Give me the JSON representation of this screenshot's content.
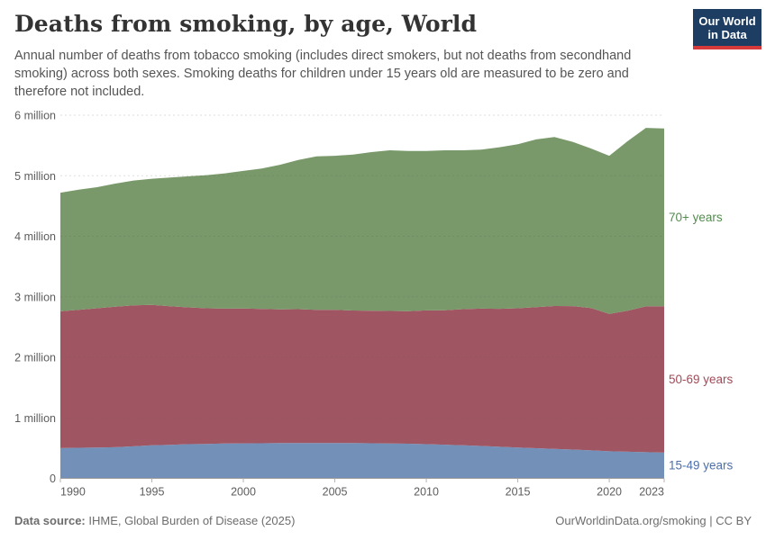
{
  "header": {
    "title": "Deaths from smoking, by age, World",
    "subtitle": "Annual number of deaths from tobacco smoking (includes direct smokers, but not deaths from secondhand smoking) across both sexes. Smoking deaths for children under 15 years old are measured to be zero and therefore not included.",
    "logo": {
      "line1": "Our World",
      "line2": "in Data",
      "bg_color": "#1d3d63",
      "accent_color": "#d73a3a"
    }
  },
  "chart_data": {
    "type": "area",
    "stacked": true,
    "title": "Deaths from smoking, by age, World",
    "xlabel": "",
    "ylabel": "",
    "values_unit": "million deaths per year",
    "grid": true,
    "legend_position": "right",
    "xlim": [
      1990,
      2023
    ],
    "ylim_millions": [
      0,
      6
    ],
    "x": [
      1990,
      1991,
      1992,
      1993,
      1994,
      1995,
      1996,
      1997,
      1998,
      1999,
      2000,
      2001,
      2002,
      2003,
      2004,
      2005,
      2006,
      2007,
      2008,
      2009,
      2010,
      2011,
      2012,
      2013,
      2014,
      2015,
      2016,
      2017,
      2018,
      2019,
      2020,
      2021,
      2022,
      2023
    ],
    "x_ticks": [
      1990,
      1995,
      2000,
      2005,
      2010,
      2015,
      2020,
      2023
    ],
    "y_ticks": [
      {
        "value": 0,
        "label": "0"
      },
      {
        "value": 1,
        "label": "1 million"
      },
      {
        "value": 2,
        "label": "2 million"
      },
      {
        "value": 3,
        "label": "3 million"
      },
      {
        "value": 4,
        "label": "4 million"
      },
      {
        "value": 5,
        "label": "5 million"
      },
      {
        "value": 6,
        "label": "6 million"
      }
    ],
    "series": [
      {
        "name": "15-49 years",
        "color": "#7390b8",
        "label_color": "#4d6faa",
        "values_millions": [
          0.5,
          0.505,
          0.51,
          0.515,
          0.53,
          0.545,
          0.555,
          0.565,
          0.57,
          0.575,
          0.578,
          0.58,
          0.583,
          0.585,
          0.585,
          0.585,
          0.583,
          0.58,
          0.576,
          0.572,
          0.565,
          0.556,
          0.545,
          0.535,
          0.522,
          0.51,
          0.498,
          0.487,
          0.476,
          0.463,
          0.448,
          0.44,
          0.432,
          0.425
        ]
      },
      {
        "name": "50-69 years",
        "color": "#a05563",
        "label_color": "#a04b58",
        "values_millions": [
          2.26,
          2.28,
          2.3,
          2.32,
          2.33,
          2.32,
          2.29,
          2.26,
          2.24,
          2.23,
          2.23,
          2.22,
          2.21,
          2.21,
          2.2,
          2.2,
          2.19,
          2.19,
          2.19,
          2.19,
          2.21,
          2.22,
          2.25,
          2.27,
          2.28,
          2.3,
          2.33,
          2.36,
          2.37,
          2.35,
          2.27,
          2.33,
          2.41,
          2.42
        ]
      },
      {
        "name": "70+ years",
        "color": "#79996a",
        "label_color": "#538b4f",
        "values_millions": [
          1.96,
          1.985,
          2.0,
          2.035,
          2.06,
          2.085,
          2.125,
          2.165,
          2.2,
          2.235,
          2.272,
          2.32,
          2.387,
          2.465,
          2.535,
          2.545,
          2.577,
          2.62,
          2.654,
          2.648,
          2.635,
          2.644,
          2.625,
          2.625,
          2.668,
          2.71,
          2.772,
          2.793,
          2.714,
          2.637,
          2.612,
          2.8,
          2.948,
          2.935
        ]
      }
    ]
  },
  "footer": {
    "source_label": "Data source:",
    "source_text": "IHME, Global Burden of Disease (2025)",
    "credit": "OurWorldinData.org/smoking | CC BY"
  }
}
